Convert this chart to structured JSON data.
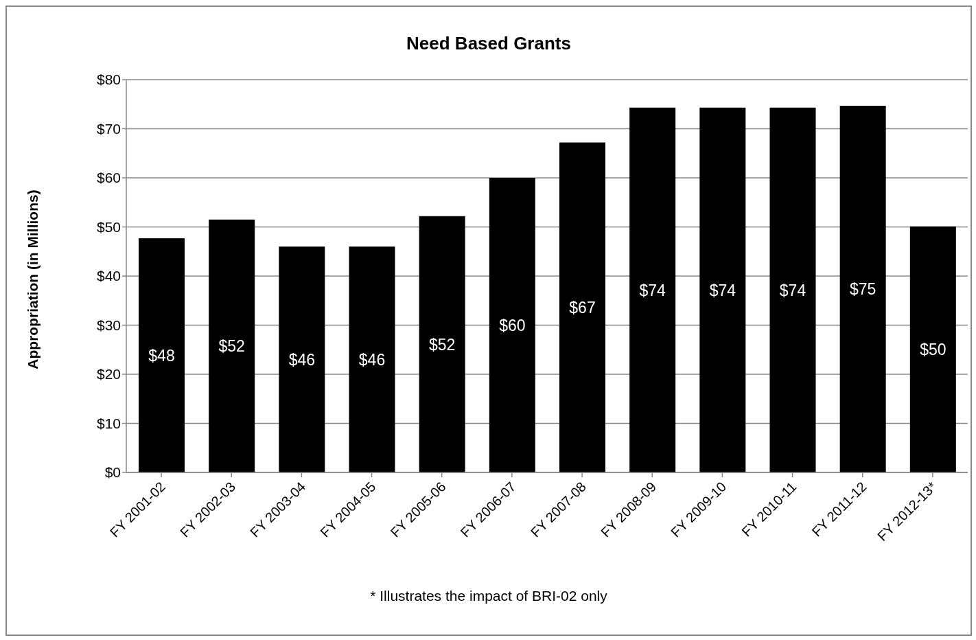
{
  "chart_data": {
    "type": "bar",
    "title": "Need Based Grants",
    "ylabel": "Appropriation (in Millions)",
    "categories": [
      "FY 2001-02",
      "FY 2002-03",
      "FY 2003-04",
      "FY 2004-05",
      "FY 2005-06",
      "FY 2006-07",
      "FY 2007-08",
      "FY 2008-09",
      "FY 2009-10",
      "FY 2010-11",
      "FY 2011-12",
      "FY 2012-13*"
    ],
    "values": [
      47.7,
      51.5,
      46,
      46,
      52.2,
      60,
      67.2,
      74.3,
      74.3,
      74.3,
      74.7,
      50.1
    ],
    "value_labels": [
      "$48",
      "$52",
      "$46",
      "$46",
      "$52",
      "$60",
      "$67",
      "$74",
      "$74",
      "$74",
      "$75",
      "$50"
    ],
    "color": "#000000",
    "ylim": [
      0,
      80
    ],
    "yticks": [
      {
        "value": 0,
        "label": "$0"
      },
      {
        "value": 10,
        "label": "$10"
      },
      {
        "value": 20,
        "label": "$20"
      },
      {
        "value": 30,
        "label": "$30"
      },
      {
        "value": 40,
        "label": "$40"
      },
      {
        "value": 50,
        "label": "$50"
      },
      {
        "value": 60,
        "label": "$60"
      },
      {
        "value": 70,
        "label": "$70"
      },
      {
        "value": 80,
        "label": "$80"
      }
    ],
    "grid": "y",
    "annotations": [
      "* Illustrates the impact of BRI-02 only"
    ]
  }
}
